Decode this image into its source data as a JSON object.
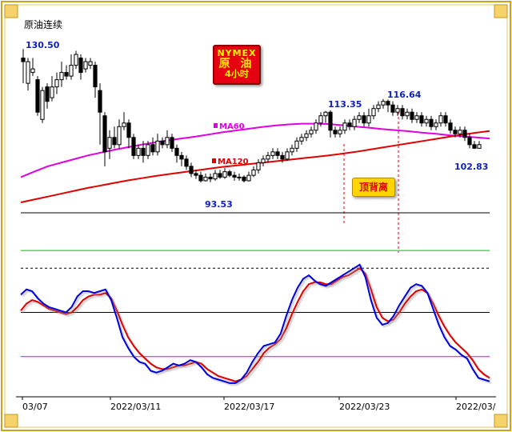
{
  "chart_data": {
    "type": "candlestick",
    "title": "原油连续",
    "badge": {
      "line1": "NYMEX",
      "line2": "原 油",
      "line3": "4小时"
    },
    "x_ticks": [
      "03/07",
      "2022/03/11",
      "2022/03/17",
      "2022/03/23",
      "2022/03/"
    ],
    "price_labels": [
      "130.50",
      "93.53",
      "113.35",
      "116.64",
      "102.83"
    ],
    "ma_labels": [
      "MA60",
      "MA120"
    ],
    "annotation": "顶背离",
    "colors": {
      "kd_k": "#0000e0",
      "kd_d": "#e00000",
      "ma60": "#e000e0",
      "ma120": "#e00000",
      "upper_line": "#00c000",
      "lower_line": "#e000e0"
    },
    "candles": [
      [
        128,
        127,
        130.5,
        121
      ],
      [
        121,
        127,
        128,
        119
      ],
      [
        124,
        125,
        128,
        123
      ],
      [
        122,
        113,
        123,
        112
      ],
      [
        111,
        119,
        120,
        110
      ],
      [
        120,
        116,
        121,
        114
      ],
      [
        117,
        120,
        123,
        116
      ],
      [
        120,
        122,
        124,
        118
      ],
      [
        122,
        124,
        127,
        120
      ],
      [
        124,
        123,
        126,
        122
      ],
      [
        123,
        126,
        129,
        122
      ],
      [
        126,
        129,
        130,
        125
      ],
      [
        128,
        124,
        129,
        122
      ],
      [
        125,
        127,
        128,
        124
      ],
      [
        126,
        127,
        128,
        125
      ],
      [
        126,
        120,
        127,
        117
      ],
      [
        119,
        113,
        121,
        104
      ],
      [
        112,
        102,
        113,
        98
      ],
      [
        103,
        106,
        108,
        100
      ],
      [
        106,
        104,
        109,
        103
      ],
      [
        104,
        109,
        111,
        103
      ],
      [
        109,
        110,
        113,
        108
      ],
      [
        110,
        106,
        111,
        103
      ],
      [
        106,
        101,
        107,
        100
      ],
      [
        101,
        103,
        104,
        100
      ],
      [
        103,
        101,
        105,
        99
      ],
      [
        101,
        104,
        105,
        100
      ],
      [
        104,
        102,
        106,
        101
      ],
      [
        102,
        105,
        107,
        101
      ],
      [
        105,
        104,
        106,
        103
      ],
      [
        104,
        106,
        108,
        103
      ],
      [
        106,
        103,
        107,
        102
      ],
      [
        103,
        101,
        104,
        99
      ],
      [
        101,
        100,
        102,
        98
      ],
      [
        100,
        98,
        101,
        97
      ],
      [
        98,
        96,
        99,
        95
      ],
      [
        96,
        95.5,
        97,
        94.5
      ],
      [
        95.5,
        94,
        96.5,
        93.5
      ],
      [
        94,
        95,
        96,
        93.8
      ],
      [
        95,
        94.5,
        96,
        93.6
      ],
      [
        94.5,
        96,
        97,
        94
      ],
      [
        96,
        95,
        97,
        94.5
      ],
      [
        95,
        96.5,
        97.5,
        94.5
      ],
      [
        96.5,
        95.5,
        97,
        95
      ],
      [
        95.5,
        95,
        96.5,
        94
      ],
      [
        95,
        95,
        96,
        94
      ],
      [
        95,
        94,
        95.5,
        93.53
      ],
      [
        94,
        95.5,
        96.5,
        93.8
      ],
      [
        95.5,
        97,
        98,
        95
      ],
      [
        97,
        99,
        100,
        96
      ],
      [
        99,
        100,
        101,
        98
      ],
      [
        100,
        101,
        102,
        99
      ],
      [
        101,
        102,
        103,
        100
      ],
      [
        102,
        101,
        103,
        100
      ],
      [
        101,
        100,
        102,
        99
      ],
      [
        100,
        102,
        103,
        99.5
      ],
      [
        102,
        103,
        104,
        101
      ],
      [
        103,
        105,
        106,
        102
      ],
      [
        105,
        106,
        107,
        104
      ],
      [
        106,
        107,
        108,
        105
      ],
      [
        107,
        108,
        109,
        106
      ],
      [
        108,
        110,
        111,
        107
      ],
      [
        110,
        112,
        113,
        109
      ],
      [
        112,
        113,
        113.35,
        110
      ],
      [
        113,
        108,
        113.5,
        106
      ],
      [
        108,
        107,
        109,
        106
      ],
      [
        107,
        108,
        109,
        106
      ],
      [
        108,
        110,
        111,
        107
      ],
      [
        110,
        109,
        111,
        108
      ],
      [
        109,
        111,
        112,
        108
      ],
      [
        111,
        112,
        113,
        110
      ],
      [
        112,
        110,
        113,
        109
      ],
      [
        110,
        112,
        114,
        109
      ],
      [
        112,
        114,
        115,
        111
      ],
      [
        114,
        115,
        116,
        113
      ],
      [
        115,
        116,
        116.64,
        114
      ],
      [
        116,
        115,
        116.5,
        113
      ],
      [
        115,
        113,
        116,
        112
      ],
      [
        113,
        114,
        115,
        112
      ],
      [
        114,
        112,
        115,
        111
      ],
      [
        112,
        113,
        114,
        111
      ],
      [
        113,
        111,
        114,
        110
      ],
      [
        111,
        112,
        113,
        110
      ],
      [
        112,
        110,
        113,
        109
      ],
      [
        110,
        111,
        112,
        109
      ],
      [
        111,
        109,
        112,
        108
      ],
      [
        109,
        110,
        111,
        108
      ],
      [
        110,
        112,
        113,
        109
      ],
      [
        112,
        110,
        113,
        109
      ],
      [
        110,
        108,
        111,
        107
      ],
      [
        108,
        107,
        109,
        106
      ],
      [
        107,
        108,
        109,
        106
      ],
      [
        108,
        106,
        109,
        105
      ],
      [
        106,
        104,
        107,
        103
      ],
      [
        104,
        103,
        105,
        102.83
      ],
      [
        103,
        104,
        105,
        102.9
      ]
    ],
    "ma60": [
      95,
      96.5,
      98,
      99,
      100,
      101,
      101.8,
      102.6,
      103.3,
      104,
      104.6,
      105.2,
      105.7,
      106.2,
      106.8,
      107.4,
      107.9,
      108.4,
      108.9,
      109.3,
      109.6,
      109.8,
      109.8,
      109.7,
      109.4,
      109,
      108.7,
      108.3,
      108,
      107.7,
      107.3,
      107,
      106.6,
      106.3,
      106,
      105.7
    ],
    "ma120": [
      88,
      88.8,
      89.6,
      90.4,
      91.2,
      92,
      92.7,
      93.4,
      94.1,
      94.7,
      95.3,
      95.8,
      96.3,
      96.8,
      97.3,
      97.8,
      98.2,
      98.6,
      99,
      99.4,
      99.8,
      100.2,
      100.6,
      101,
      101.5,
      102,
      102.6,
      103.2,
      103.8,
      104.4,
      105,
      105.6,
      106.2,
      106.8,
      107.3,
      107.8
    ],
    "kd_k": [
      55,
      58,
      57,
      53,
      50,
      48,
      47,
      46,
      45,
      48,
      54,
      57,
      57,
      56,
      57,
      58,
      52,
      42,
      31,
      25,
      20,
      17,
      16,
      12,
      11,
      12,
      14,
      16,
      15,
      16,
      18,
      17,
      14,
      10,
      8,
      7,
      6,
      5,
      5,
      7,
      11,
      17,
      22,
      26,
      27,
      28,
      33,
      43,
      52,
      59,
      64,
      66,
      63,
      61,
      60,
      62,
      64,
      66,
      68,
      70,
      72,
      65,
      52,
      42,
      38,
      39,
      43,
      49,
      54,
      59,
      61,
      60,
      56,
      47,
      38,
      31,
      26,
      24,
      21,
      19,
      13,
      8,
      7,
      6
    ],
    "kd_d": [
      46,
      50,
      52,
      51,
      49,
      47,
      46,
      45,
      44,
      45,
      48,
      52,
      54,
      55,
      55,
      56,
      53,
      46,
      38,
      31,
      26,
      22,
      19,
      16,
      14,
      13,
      13,
      14,
      15,
      15,
      16,
      17,
      16,
      13,
      11,
      9,
      8,
      7,
      6,
      7,
      9,
      13,
      17,
      22,
      25,
      27,
      30,
      36,
      44,
      51,
      57,
      61,
      62,
      62,
      61,
      61,
      63,
      65,
      66,
      68,
      70,
      67,
      58,
      48,
      42,
      40,
      41,
      45,
      50,
      54,
      57,
      58,
      56,
      50,
      43,
      37,
      32,
      28,
      25,
      22,
      18,
      13,
      10,
      8
    ],
    "kd_levels": {
      "upper": 80,
      "lower": 20,
      "upper_dashed": 70
    }
  }
}
